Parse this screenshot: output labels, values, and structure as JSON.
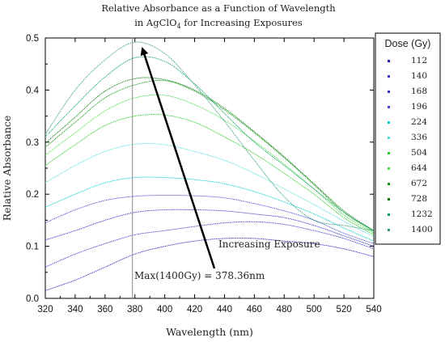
{
  "chart_data": {
    "type": "line",
    "title_line1": "Relative Absorbance as a Function of Wavelength",
    "title_line2_prefix": "in AgClO",
    "title_line2_sub": "4",
    "title_line2_suffix": " for Increasing Exposures",
    "xlabel": "Wavelength (nm)",
    "ylabel": "Relative Absorbance",
    "xlim": [
      320,
      540
    ],
    "ylim": [
      0.0,
      0.5
    ],
    "xticks": [
      320,
      340,
      360,
      380,
      400,
      420,
      440,
      460,
      480,
      500,
      520,
      540
    ],
    "yticks": [
      0.0,
      0.1,
      0.2,
      0.3,
      0.4,
      0.5
    ],
    "ytick_labels": [
      "0.0",
      "0.1",
      "0.2",
      "0.3",
      "0.4",
      "0.5"
    ],
    "grid": false,
    "legend_title": "Dose (Gy)",
    "legend_position": "right",
    "vline_x": 378.36,
    "x": [
      320,
      340,
      360,
      380,
      400,
      420,
      440,
      460,
      480,
      500,
      520,
      540
    ],
    "series": [
      {
        "name": "112",
        "color": "#2222bb",
        "values": [
          0.015,
          0.035,
          0.06,
          0.085,
          0.1,
          0.11,
          0.115,
          0.115,
          0.11,
          0.105,
          0.095,
          0.08
        ]
      },
      {
        "name": "140",
        "color": "#3a3acc",
        "values": [
          0.06,
          0.085,
          0.105,
          0.122,
          0.13,
          0.138,
          0.145,
          0.147,
          0.142,
          0.13,
          0.115,
          0.095
        ]
      },
      {
        "name": "168",
        "color": "#3030c8",
        "values": [
          0.112,
          0.13,
          0.15,
          0.165,
          0.17,
          0.17,
          0.168,
          0.162,
          0.155,
          0.14,
          0.12,
          0.1
        ]
      },
      {
        "name": "196",
        "color": "#4848d8",
        "values": [
          0.145,
          0.17,
          0.188,
          0.196,
          0.198,
          0.197,
          0.193,
          0.182,
          0.168,
          0.15,
          0.125,
          0.105
        ]
      },
      {
        "name": "224",
        "color": "#00cccc",
        "values": [
          0.175,
          0.2,
          0.222,
          0.232,
          0.232,
          0.228,
          0.22,
          0.205,
          0.185,
          0.162,
          0.135,
          0.11
        ]
      },
      {
        "name": "336",
        "color": "#55dddd",
        "values": [
          0.222,
          0.255,
          0.282,
          0.296,
          0.295,
          0.282,
          0.265,
          0.24,
          0.21,
          0.18,
          0.148,
          0.118
        ]
      },
      {
        "name": "504",
        "color": "#22cc22",
        "values": [
          0.255,
          0.295,
          0.332,
          0.35,
          0.352,
          0.338,
          0.31,
          0.278,
          0.24,
          0.2,
          0.155,
          0.122
        ]
      },
      {
        "name": "644",
        "color": "#44dd44",
        "values": [
          0.275,
          0.318,
          0.36,
          0.385,
          0.39,
          0.372,
          0.342,
          0.302,
          0.258,
          0.21,
          0.16,
          0.125
        ]
      },
      {
        "name": "672",
        "color": "#119911",
        "values": [
          0.29,
          0.338,
          0.385,
          0.41,
          0.418,
          0.398,
          0.362,
          0.318,
          0.27,
          0.218,
          0.165,
          0.128
        ]
      },
      {
        "name": "728",
        "color": "#007700",
        "values": [
          0.298,
          0.348,
          0.398,
          0.422,
          0.42,
          0.4,
          0.365,
          0.32,
          0.272,
          0.22,
          0.168,
          0.13
        ]
      },
      {
        "name": "1232",
        "color": "#00a060",
        "values": [
          0.31,
          0.37,
          0.425,
          0.462,
          0.455,
          0.412,
          0.355,
          0.3,
          0.255,
          0.21,
          0.165,
          0.13
        ]
      },
      {
        "name": "1400",
        "color": "#339977",
        "values": [
          0.315,
          0.4,
          0.458,
          0.492,
          0.47,
          0.41,
          0.34,
          0.265,
          0.195,
          0.15,
          0.14,
          0.13
        ]
      }
    ],
    "annotations": [
      {
        "text": "Increasing Exposure"
      },
      {
        "text": "Max(1400Gy) = 378.36nm"
      }
    ]
  }
}
